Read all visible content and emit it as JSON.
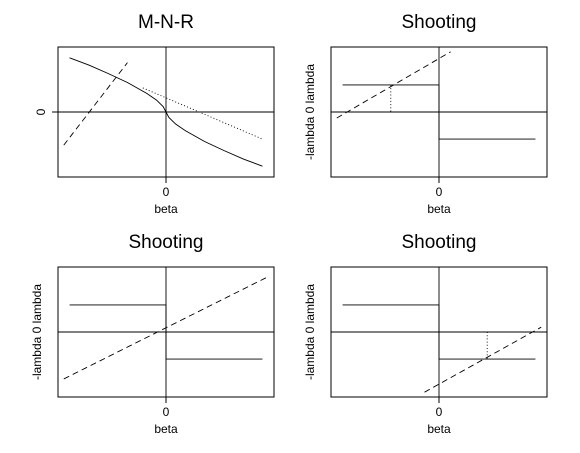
{
  "chart_data": [
    {
      "type": "line",
      "title": "M-N-R",
      "xlabel": "beta",
      "ylabel": "",
      "xlim": [
        -1,
        1
      ],
      "ylim": [
        -1,
        1
      ],
      "x_ticks": [
        {
          "value": 0,
          "label": "0"
        }
      ],
      "y_ticks": [
        {
          "value": 0,
          "label": "0"
        }
      ],
      "grid": false,
      "series": [
        {
          "style": "solid",
          "points": [
            [
              -1,
              0.9
            ],
            [
              -0.8,
              0.78
            ],
            [
              -0.6,
              0.64
            ],
            [
              -0.4,
              0.49
            ],
            [
              -0.2,
              0.31
            ],
            [
              -0.1,
              0.2
            ],
            [
              -0.03,
              0.09
            ],
            [
              0,
              0
            ],
            [
              0.03,
              -0.09
            ],
            [
              0.1,
              -0.2
            ],
            [
              0.2,
              -0.31
            ],
            [
              0.4,
              -0.49
            ],
            [
              0.6,
              -0.64
            ],
            [
              0.8,
              -0.78
            ],
            [
              1,
              -0.9
            ]
          ]
        },
        {
          "style": "dashed",
          "points": [
            [
              -1.06,
              -0.55
            ],
            [
              -0.4,
              0.82
            ]
          ]
        },
        {
          "style": "dotted",
          "points": [
            [
              -0.24,
              0.4
            ],
            [
              1,
              -0.45
            ]
          ]
        }
      ]
    },
    {
      "type": "line",
      "title": "Shooting",
      "xlabel": "beta",
      "ylabel": "-lambda 0  lambda",
      "xlim": [
        -1,
        1
      ],
      "ylim": [
        -1,
        1
      ],
      "x_ticks": [
        {
          "value": 0,
          "label": "0"
        }
      ],
      "y_ticks": [],
      "grid": false,
      "series": [
        {
          "style": "solid",
          "points": [
            [
              -1,
              0.45
            ],
            [
              0,
              0.45
            ],
            [
              0,
              -0.45
            ],
            [
              1,
              -0.45
            ]
          ]
        },
        {
          "style": "dashed",
          "points": [
            [
              -1.06,
              -0.1
            ],
            [
              0.12,
              1
            ]
          ]
        },
        {
          "style": "dotted",
          "points": [
            [
              -0.5,
              0.45
            ],
            [
              -0.5,
              0
            ]
          ]
        }
      ]
    },
    {
      "type": "line",
      "title": "Shooting",
      "xlabel": "beta",
      "ylabel": "-lambda 0  lambda",
      "xlim": [
        -1,
        1
      ],
      "ylim": [
        -1,
        1
      ],
      "x_ticks": [
        {
          "value": 0,
          "label": "0"
        }
      ],
      "y_ticks": [],
      "grid": false,
      "series": [
        {
          "style": "solid",
          "points": [
            [
              -1,
              0.45
            ],
            [
              0,
              0.45
            ],
            [
              0,
              -0.45
            ],
            [
              1,
              -0.45
            ]
          ]
        },
        {
          "style": "dashed",
          "points": [
            [
              -1.06,
              -0.78
            ],
            [
              1.06,
              0.92
            ]
          ]
        }
      ]
    },
    {
      "type": "line",
      "title": "Shooting",
      "xlabel": "beta",
      "ylabel": "-lambda 0  lambda",
      "xlim": [
        -1,
        1
      ],
      "ylim": [
        -1,
        1
      ],
      "x_ticks": [
        {
          "value": 0,
          "label": "0"
        }
      ],
      "y_ticks": [],
      "grid": false,
      "series": [
        {
          "style": "solid",
          "points": [
            [
              -1,
              0.45
            ],
            [
              0,
              0.45
            ],
            [
              0,
              -0.45
            ],
            [
              1,
              -0.45
            ]
          ]
        },
        {
          "style": "dashed",
          "points": [
            [
              -0.15,
              -1
            ],
            [
              1.06,
              0.08
            ]
          ]
        },
        {
          "style": "dotted",
          "points": [
            [
              0.5,
              0
            ],
            [
              0.5,
              -0.45
            ]
          ]
        }
      ]
    }
  ]
}
